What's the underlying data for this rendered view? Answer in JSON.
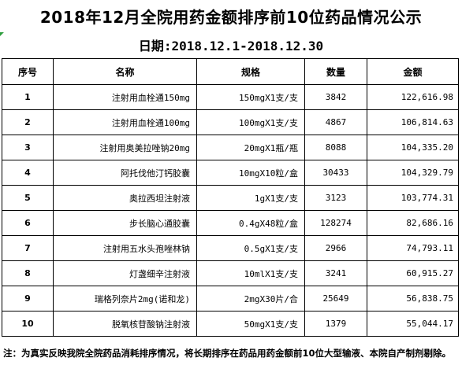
{
  "title": "2018年12月全院用药金额排序前10位药品情况公示",
  "date_line": "日期:2018.12.1-2018.12.30",
  "headers": {
    "index": "序号",
    "name": "名称",
    "spec": "规格",
    "qty": "数量",
    "amount": "金额"
  },
  "rows": [
    {
      "index": "1",
      "name": "注射用血栓通150mg",
      "spec": "150mgX1支/支",
      "qty": "3842",
      "amount": "122,616.98"
    },
    {
      "index": "2",
      "name": "注射用血栓通100mg",
      "spec": "100mgX1支/支",
      "qty": "4867",
      "amount": "106,814.63"
    },
    {
      "index": "3",
      "name": "注射用奥美拉唑钠20mg",
      "spec": "20mgX1瓶/瓶",
      "qty": "8088",
      "amount": "104,335.20"
    },
    {
      "index": "4",
      "name": "阿托伐他汀钙胶囊",
      "spec": "10mgX10粒/盒",
      "qty": "30433",
      "amount": "104,329.79"
    },
    {
      "index": "5",
      "name": "奥拉西坦注射液",
      "spec": "1gX1支/支",
      "qty": "3123",
      "amount": "103,774.31"
    },
    {
      "index": "6",
      "name": "步长脑心通胶囊",
      "spec": "0.4gX48粒/盒",
      "qty": "128274",
      "amount": "82,686.16"
    },
    {
      "index": "7",
      "name": "注射用五水头孢唑林钠",
      "spec": "0.5gX1支/支",
      "qty": "2966",
      "amount": "74,793.11"
    },
    {
      "index": "8",
      "name": "灯盏细辛注射液",
      "spec": "10mlX1支/支",
      "qty": "3241",
      "amount": "60,915.27"
    },
    {
      "index": "9",
      "name": "瑞格列奈片2mg(诺和龙)",
      "spec": "2mgX30片/合",
      "qty": "25649",
      "amount": "56,838.75"
    },
    {
      "index": "10",
      "name": "脱氧核苷酸钠注射液",
      "spec": "50mgX1支/支",
      "qty": "1379",
      "amount": "55,044.17"
    }
  ],
  "note": "注：为真实反映我院全院药品消耗排序情况，将长期排序在药品用药金额前10位大型输液、本院自产制剂剔除。",
  "colors": {
    "border": "#000000",
    "corner_mark": "#2e9e3e"
  }
}
